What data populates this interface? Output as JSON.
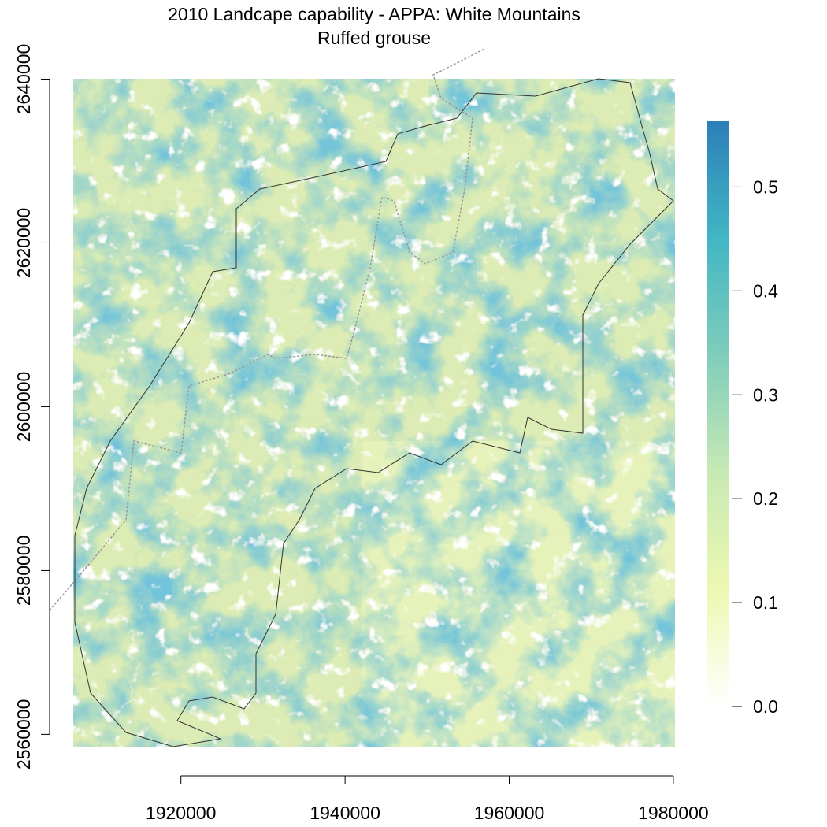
{
  "chart_data": {
    "type": "raster",
    "title": "2010 Landcape capability - APPA: White Mountains",
    "subtitle": "Ruffed grouse",
    "xlim": [
      1904000,
      1980200
    ],
    "ylim": [
      2558500,
      2643700
    ],
    "xticks": [
      1920000,
      1940000,
      1960000,
      1980000
    ],
    "yticks": [
      2560000,
      2580000,
      2600000,
      2620000,
      2640000
    ],
    "colorbar": {
      "lim": [
        0,
        0.564
      ],
      "ticks": [
        {
          "value": 0,
          "label": "0.0"
        },
        0.1,
        0.2,
        0.3,
        0.4,
        0.5
      ],
      "colors": [
        "#ffffff",
        "#edf8b1",
        "#c7e9b4",
        "#7fcdbb",
        "#41b6c4",
        "#2c7fb8"
      ]
    }
  }
}
